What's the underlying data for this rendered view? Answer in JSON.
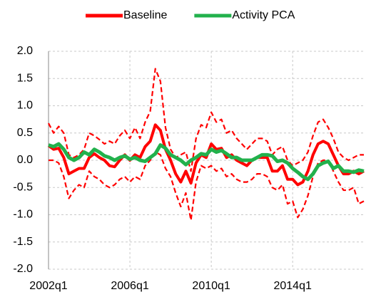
{
  "chart_data": {
    "type": "line",
    "categories": [
      "2002q1",
      null,
      null,
      null,
      null,
      null,
      null,
      null,
      null,
      null,
      null,
      null,
      null,
      null,
      null,
      null,
      "2006q1",
      null,
      null,
      null,
      null,
      null,
      null,
      null,
      null,
      null,
      null,
      null,
      null,
      null,
      null,
      null,
      "2010q1",
      null,
      null,
      null,
      null,
      null,
      null,
      null,
      null,
      null,
      null,
      null,
      null,
      null,
      null,
      null,
      "2014q1",
      null,
      null,
      null,
      null,
      null,
      null,
      null,
      null,
      null,
      null,
      null,
      null,
      null,
      null
    ],
    "series": [
      {
        "color": "#ff0000",
        "dashed": true,
        "values": [
          0.68,
          0.5,
          0.62,
          0.5,
          0.1,
          0.05,
          0.1,
          0.2,
          0.5,
          0.45,
          0.38,
          0.3,
          0.35,
          0.3,
          0.45,
          0.55,
          0.4,
          0.6,
          0.4,
          0.7,
          0.9,
          1.68,
          1.45,
          0.6,
          0.2,
          0.05,
          0.1,
          0.15,
          -0.2,
          0.4,
          0.65,
          0.6,
          0.88,
          0.7,
          0.75,
          0.5,
          0.55,
          0.4,
          0.3,
          0.2,
          0.3,
          0.4,
          0.4,
          0.35,
          0.1,
          0.2,
          0.25,
          0.0,
          -0.1,
          -0.05,
          0.0,
          0.15,
          0.45,
          0.7,
          0.75,
          0.6,
          0.4,
          0.15,
          0.05,
          0.0,
          0.05,
          0.1,
          0.1
        ]
      },
      {
        "color": "#ff0000",
        "dashed": true,
        "values": [
          0.0,
          0.0,
          -0.05,
          -0.3,
          -0.7,
          -0.55,
          -0.45,
          -0.5,
          -0.2,
          -0.3,
          -0.35,
          -0.45,
          -0.5,
          -0.45,
          -0.35,
          -0.3,
          -0.4,
          -0.3,
          -0.35,
          -0.1,
          0.0,
          0.15,
          0.1,
          -0.15,
          -0.3,
          -0.6,
          -0.85,
          -0.6,
          -1.1,
          -0.4,
          -0.1,
          -0.15,
          -0.1,
          -0.2,
          -0.15,
          -0.3,
          -0.25,
          -0.35,
          -0.4,
          -0.4,
          -0.35,
          -0.25,
          -0.25,
          -0.3,
          -0.5,
          -0.55,
          -0.45,
          -0.8,
          -0.75,
          -1.05,
          -0.9,
          -0.65,
          -0.3,
          -0.05,
          0.0,
          0.0,
          -0.2,
          -0.4,
          -0.55,
          -0.55,
          -0.5,
          -0.8,
          -0.75
        ]
      },
      {
        "name": "Baseline",
        "color": "#ff0000",
        "values": [
          0.27,
          0.2,
          0.22,
          0.05,
          -0.25,
          -0.2,
          -0.15,
          -0.15,
          0.05,
          0.12,
          0.05,
          0.0,
          -0.1,
          -0.12,
          0.0,
          0.1,
          0.0,
          0.1,
          0.05,
          0.25,
          0.35,
          0.65,
          0.55,
          0.2,
          0.0,
          -0.25,
          -0.4,
          -0.2,
          -0.42,
          -0.05,
          0.1,
          0.05,
          0.3,
          0.2,
          0.22,
          0.05,
          0.1,
          0.0,
          -0.05,
          -0.1,
          0.0,
          0.05,
          0.05,
          0.05,
          -0.2,
          -0.2,
          -0.1,
          -0.35,
          -0.35,
          -0.45,
          -0.4,
          -0.2,
          0.1,
          0.3,
          0.35,
          0.3,
          0.1,
          -0.1,
          -0.25,
          -0.25,
          -0.2,
          -0.25,
          -0.2
        ]
      },
      {
        "name": "Activity PCA",
        "color": "#22b14c",
        "values": [
          0.28,
          0.25,
          0.3,
          0.2,
          0.05,
          0.0,
          0.05,
          0.15,
          0.1,
          0.2,
          0.15,
          0.08,
          0.05,
          0.0,
          0.05,
          0.08,
          0.02,
          0.05,
          0.0,
          -0.02,
          0.05,
          0.12,
          0.28,
          0.22,
          0.1,
          0.05,
          0.0,
          -0.08,
          0.0,
          0.05,
          0.12,
          0.1,
          0.2,
          0.15,
          0.18,
          0.12,
          0.05,
          0.05,
          0.0,
          0.0,
          0.0,
          0.05,
          0.1,
          0.1,
          0.08,
          -0.02,
          0.0,
          -0.05,
          -0.15,
          -0.22,
          -0.3,
          -0.35,
          -0.25,
          -0.1,
          -0.05,
          -0.02,
          -0.15,
          -0.1,
          -0.2,
          -0.2,
          -0.22,
          -0.18,
          -0.2
        ]
      }
    ],
    "ylim": [
      -2,
      2
    ],
    "yticks": [
      {
        "value": 2,
        "label": "2.0"
      },
      {
        "value": 1.5,
        "label": "1.5"
      },
      {
        "value": 1,
        "label": "1.0"
      },
      {
        "value": 0.5,
        "label": "0.5"
      },
      {
        "value": 0,
        "label": "0.0"
      },
      {
        "value": -0.5,
        "label": "-0.5"
      },
      {
        "value": -1,
        "label": "-1.0"
      },
      {
        "value": -1.5,
        "label": "-1.5"
      },
      {
        "value": -2,
        "label": "-2.0"
      }
    ],
    "grid": true
  }
}
